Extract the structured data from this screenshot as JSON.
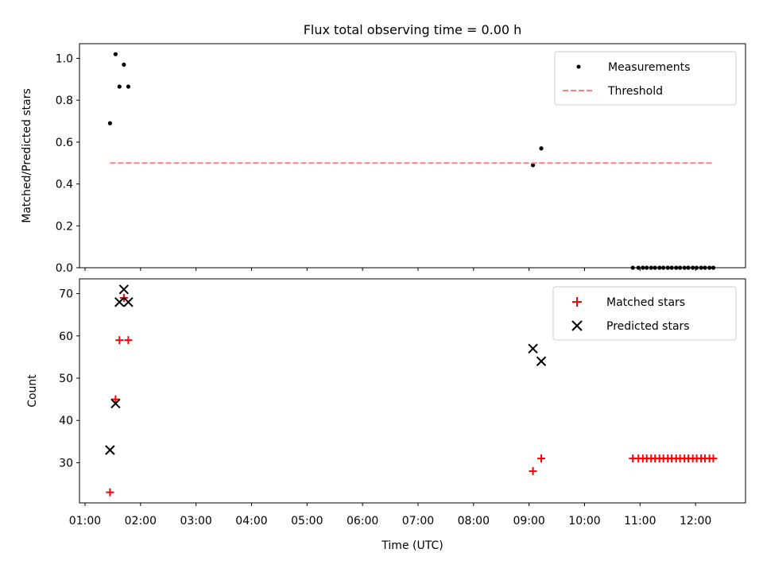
{
  "figure": {
    "title": "Flux total observing time = 0.00 h",
    "xlabel": "Time (UTC)"
  },
  "colors": {
    "measurement": "#000000",
    "threshold": "#ff8080",
    "matched": "#ff0000",
    "predicted": "#000000",
    "axes": "#000000",
    "legend_border": "#cccccc"
  },
  "chart_data": [
    {
      "type": "scatter",
      "ylabel": "Matched/Predicted stars",
      "xlim": [
        0.9,
        12.9
      ],
      "ylim": [
        0.0,
        1.07
      ],
      "y_ticks": [
        0.0,
        0.2,
        0.4,
        0.6,
        0.8,
        1.0
      ],
      "y_tick_labels": [
        "0.0",
        "0.2",
        "0.4",
        "0.6",
        "0.8",
        "1.0"
      ],
      "legend_position": "top-right",
      "legend": [
        "Measurements",
        "Threshold"
      ],
      "series": [
        {
          "name": "Measurements",
          "marker": "dot",
          "x": [
            1.45,
            1.55,
            1.62,
            1.7,
            1.78,
            9.07,
            9.22,
            10.87,
            10.97,
            11.05,
            11.12,
            11.2,
            11.27,
            11.35,
            11.42,
            11.5,
            11.57,
            11.65,
            11.72,
            11.8,
            11.87,
            11.95,
            12.02,
            12.1,
            12.17,
            12.25,
            12.32
          ],
          "y": [
            0.69,
            1.02,
            0.865,
            0.97,
            0.865,
            0.49,
            0.57,
            0.0,
            0.0,
            0.0,
            0.0,
            0.0,
            0.0,
            0.0,
            0.0,
            0.0,
            0.0,
            0.0,
            0.0,
            0.0,
            0.0,
            0.0,
            0.0,
            0.0,
            0.0,
            0.0,
            0.0
          ]
        },
        {
          "name": "Threshold",
          "marker": "dashed-line",
          "x": [
            1.45,
            12.32
          ],
          "y": [
            0.5,
            0.5
          ]
        }
      ]
    },
    {
      "type": "scatter",
      "ylabel": "Count",
      "xlim": [
        0.9,
        12.9
      ],
      "ylim": [
        20.5,
        73.5
      ],
      "y_ticks": [
        30,
        40,
        50,
        60,
        70
      ],
      "y_tick_labels": [
        "30",
        "40",
        "50",
        "60",
        "70"
      ],
      "x_ticks": [
        1,
        2,
        3,
        4,
        5,
        6,
        7,
        8,
        9,
        10,
        11,
        12
      ],
      "x_tick_labels": [
        "01:00",
        "02:00",
        "03:00",
        "04:00",
        "05:00",
        "06:00",
        "07:00",
        "08:00",
        "09:00",
        "10:00",
        "11:00",
        "12:00"
      ],
      "legend_position": "top-right",
      "legend": [
        "Matched stars",
        "Predicted stars"
      ],
      "series": [
        {
          "name": "Matched stars",
          "marker": "plus",
          "x": [
            1.45,
            1.55,
            1.62,
            1.7,
            1.78,
            9.07,
            9.22,
            10.87,
            10.97,
            11.05,
            11.12,
            11.2,
            11.27,
            11.35,
            11.42,
            11.5,
            11.57,
            11.65,
            11.72,
            11.8,
            11.87,
            11.95,
            12.02,
            12.1,
            12.17,
            12.25,
            12.32
          ],
          "y": [
            23,
            45,
            59,
            69,
            59,
            28,
            31,
            31,
            31,
            31,
            31,
            31,
            31,
            31,
            31,
            31,
            31,
            31,
            31,
            31,
            31,
            31,
            31,
            31,
            31,
            31,
            31
          ]
        },
        {
          "name": "Predicted stars",
          "marker": "cross",
          "x": [
            1.45,
            1.55,
            1.62,
            1.7,
            1.78,
            9.07,
            9.22
          ],
          "y": [
            33,
            44,
            68,
            71,
            68,
            57,
            54
          ]
        }
      ]
    }
  ]
}
